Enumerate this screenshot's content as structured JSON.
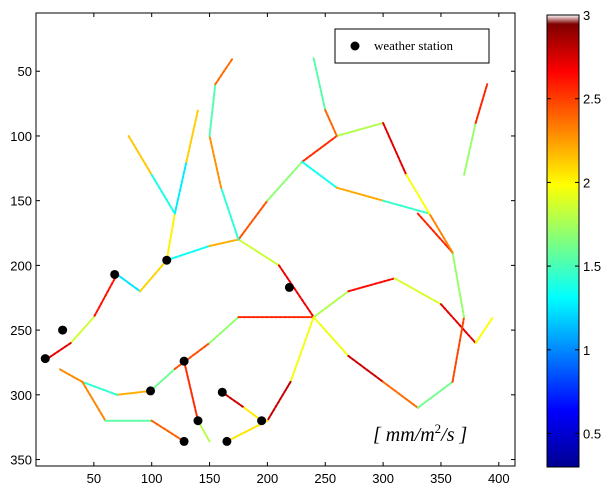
{
  "chart_data": {
    "type": "scatter",
    "title": "",
    "xlabel": "",
    "ylabel": "",
    "xlim": [
      0,
      414
    ],
    "ylim": [
      5,
      355
    ],
    "y_reversed": true,
    "x_ticks": [
      "50",
      "100",
      "150",
      "200",
      "250",
      "300",
      "350",
      "400"
    ],
    "y_ticks": [
      "50",
      "100",
      "150",
      "200",
      "250",
      "300",
      "350"
    ],
    "x_tick_values": [
      50,
      100,
      150,
      200,
      250,
      300,
      350,
      400
    ],
    "y_tick_values": [
      50,
      100,
      150,
      200,
      250,
      300,
      350
    ],
    "legend": {
      "label": "weather station",
      "placement": "top-right"
    },
    "annotation": {
      "base": "[ mm/m",
      "sup": "2",
      "tail": "/s ]"
    },
    "series": [
      {
        "name": "weather station",
        "points": [
          {
            "x": 113,
            "y": 196
          },
          {
            "x": 68,
            "y": 207
          },
          {
            "x": 219,
            "y": 217
          },
          {
            "x": 23,
            "y": 250
          },
          {
            "x": 8,
            "y": 272
          },
          {
            "x": 128,
            "y": 274
          },
          {
            "x": 99,
            "y": 297
          },
          {
            "x": 161,
            "y": 298
          },
          {
            "x": 140,
            "y": 320
          },
          {
            "x": 195,
            "y": 320
          },
          {
            "x": 128,
            "y": 336
          },
          {
            "x": 165,
            "y": 336
          }
        ]
      }
    ],
    "colorbar": {
      "min": 0.3,
      "max": 3.0,
      "ticks": [
        "0.5",
        "1",
        "1.5",
        "2",
        "2.5",
        "3"
      ],
      "tick_values": [
        0.5,
        1,
        1.5,
        2,
        2.5,
        3
      ],
      "colormap": "jet"
    }
  }
}
